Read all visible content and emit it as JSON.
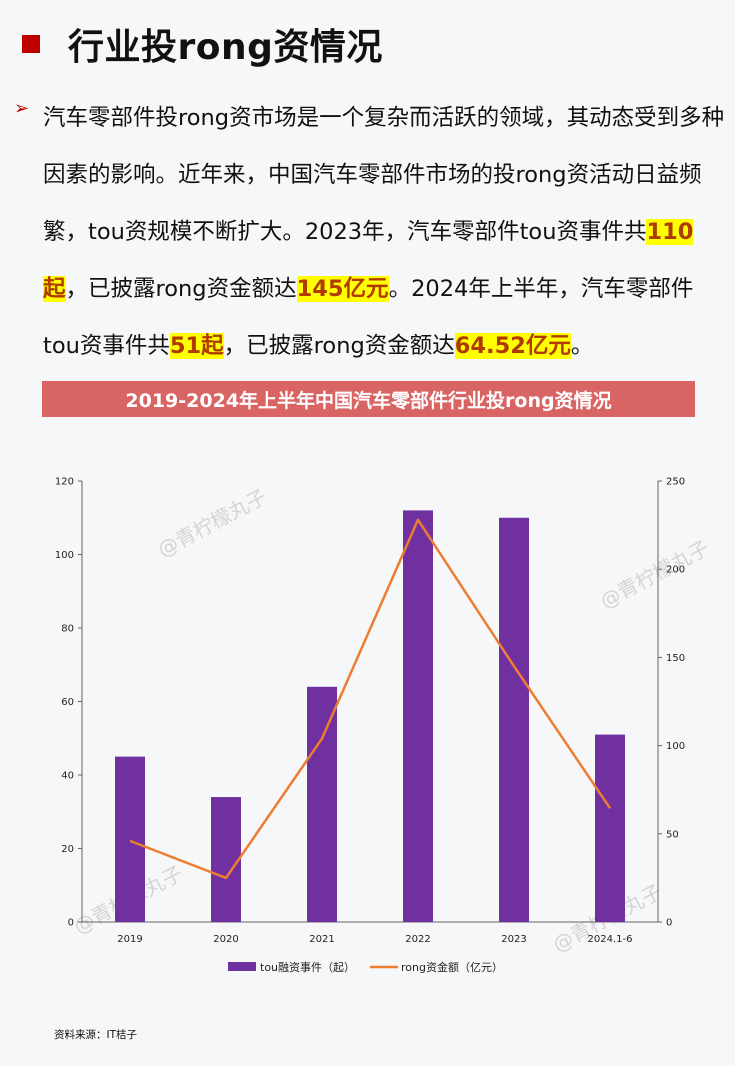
{
  "header": {
    "title": "行业投rong资情况"
  },
  "paragraph": {
    "bullet_icon": "triangle-right-icon",
    "part1": "汽车零部件投rong资市场是一个复杂而活跃的领域，其动态受到多种因素的影响。近年来，中国汽车零部件市场的投rong资活动日益频繁，tou资规模不断扩大。2023年，汽车零部件tou资事件共",
    "hl1": "110起",
    "part2": "，已披露rong资金额达",
    "hl2": "145亿元",
    "part3": "。2024年上半年，汽车零部件tou资事件共",
    "hl3": "51起",
    "part4": "，已披露rong资金额达",
    "hl4": "64.52亿元",
    "part5": "。"
  },
  "banner": {
    "title": "2019-2024年上半年中国汽车零部件行业投rong资情况"
  },
  "watermarks": [
    "@青柠檬丸子",
    "@青柠檬丸子",
    "@青柠檬丸子",
    "@青柠檬丸子"
  ],
  "source": "资料来源：IT桔子",
  "colors": {
    "bar": "#7030a0",
    "line": "#ed7d31",
    "banner": "#d96464",
    "accent": "#c00000",
    "highlight": "#ffff00"
  },
  "chart_data": {
    "type": "bar",
    "categories": [
      "2019",
      "2020",
      "2021",
      "2022",
      "2023",
      "2024.1-6"
    ],
    "series": [
      {
        "name": "tou融资事件（起）",
        "type": "bar",
        "axis": "left",
        "values": [
          45,
          34,
          64,
          112,
          110,
          51
        ]
      },
      {
        "name": "rong资金额（亿元）",
        "type": "line",
        "axis": "right",
        "values": [
          46,
          25,
          104,
          228,
          145,
          64.52
        ]
      }
    ],
    "ylim_left": [
      0,
      120
    ],
    "yticks_left": [
      0,
      20,
      40,
      60,
      80,
      100,
      120
    ],
    "ylim_right": [
      0,
      250
    ],
    "yticks_right": [
      0,
      50,
      100,
      150,
      200,
      250
    ],
    "grid": false,
    "legend": "bottom"
  }
}
